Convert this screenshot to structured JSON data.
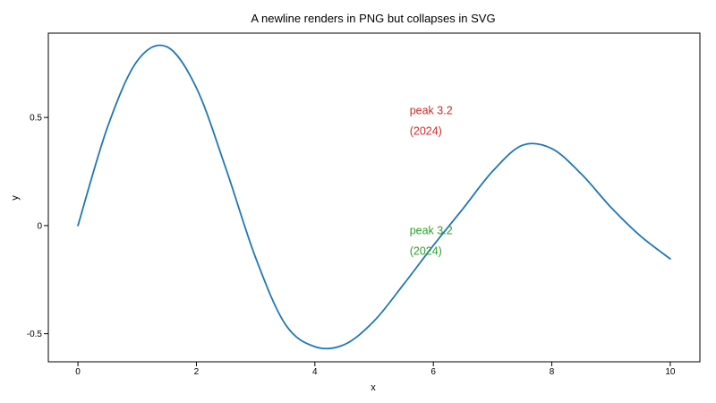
{
  "chart_data": {
    "type": "line",
    "title": "A newline renders in PNG but collapses in SVG",
    "xlabel": "x",
    "ylabel": "y",
    "xlim": [
      -0.5,
      10.5
    ],
    "ylim": [
      -0.63,
      0.89
    ],
    "xticks": [
      0,
      2,
      4,
      6,
      8,
      10
    ],
    "xtick_labels": [
      "0",
      "2",
      "4",
      "6",
      "8",
      "10"
    ],
    "yticks": [
      -0.5,
      0,
      0.5
    ],
    "ytick_labels": [
      "-0.5",
      "0",
      "0.5"
    ],
    "grid": false,
    "legend": "none",
    "line_color": "#1f77b4",
    "series": [
      {
        "x": [
          0,
          0.5,
          1,
          1.5,
          2,
          2.5,
          3,
          3.5,
          4,
          4.5,
          5,
          5.5,
          6,
          6.5,
          7,
          7.5,
          8,
          8.5,
          9,
          9.5,
          10
        ],
        "values": [
          0,
          0.456,
          0.761,
          0.827,
          0.637,
          0.262,
          -0.149,
          -0.456,
          -0.56,
          -0.55,
          -0.441,
          -0.271,
          -0.092,
          0.078,
          0.251,
          0.371,
          0.356,
          0.238,
          0.084,
          -0.049,
          -0.154
        ]
      }
    ],
    "annotations": [
      {
        "lines": [
          "peak 3.2",
          "(2024)"
        ],
        "x": 5.6,
        "y": 0.515,
        "color": "#d62728"
      },
      {
        "lines": [
          "peak 3.2",
          "(2024)"
        ],
        "x": 5.6,
        "y": -0.04,
        "color": "#2ca02c"
      }
    ]
  }
}
